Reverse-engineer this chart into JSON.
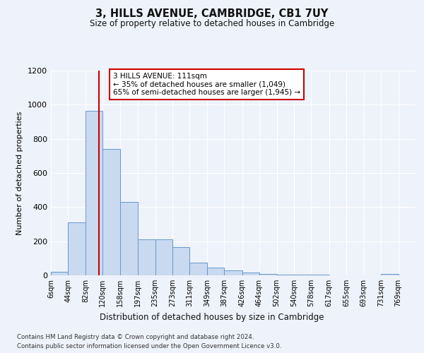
{
  "title": "3, HILLS AVENUE, CAMBRIDGE, CB1 7UY",
  "subtitle": "Size of property relative to detached houses in Cambridge",
  "xlabel": "Distribution of detached houses by size in Cambridge",
  "ylabel": "Number of detached properties",
  "bin_labels": [
    "6sqm",
    "44sqm",
    "82sqm",
    "120sqm",
    "158sqm",
    "197sqm",
    "235sqm",
    "273sqm",
    "311sqm",
    "349sqm",
    "387sqm",
    "426sqm",
    "464sqm",
    "502sqm",
    "540sqm",
    "578sqm",
    "617sqm",
    "655sqm",
    "693sqm",
    "731sqm",
    "769sqm"
  ],
  "bar_values": [
    20,
    310,
    965,
    740,
    430,
    210,
    210,
    165,
    75,
    47,
    30,
    15,
    8,
    5,
    5,
    5,
    0,
    0,
    0,
    8,
    0
  ],
  "bar_color": "#c9d9f0",
  "bar_edgecolor": "#6699cc",
  "property_line_x": 111,
  "property_line_label": "3 HILLS AVENUE: 111sqm",
  "annotation_line1": "← 35% of detached houses are smaller (1,049)",
  "annotation_line2": "65% of semi-detached houses are larger (1,945) →",
  "annotation_box_color": "#ffffff",
  "annotation_box_edgecolor": "#cc0000",
  "vline_color": "#cc0000",
  "footer_line1": "Contains HM Land Registry data © Crown copyright and database right 2024.",
  "footer_line2": "Contains public sector information licensed under the Open Government Licence v3.0.",
  "ylim": [
    0,
    1200
  ],
  "background_color": "#eef2fa",
  "grid_color": "#ffffff",
  "bin_edges": [
    6,
    44,
    82,
    120,
    158,
    197,
    235,
    273,
    311,
    349,
    387,
    426,
    464,
    502,
    540,
    578,
    617,
    655,
    693,
    731,
    769,
    807
  ]
}
